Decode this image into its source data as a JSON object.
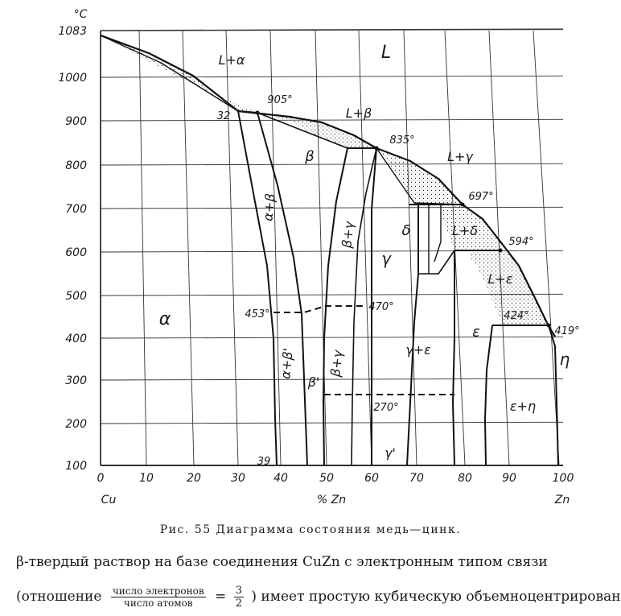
{
  "diagram": {
    "y_unit": "°C",
    "x_unit": "% Zn",
    "x_left": "Cu",
    "x_right": "Zn",
    "y_ticks": [
      "100",
      "200",
      "300",
      "400",
      "500",
      "600",
      "700",
      "800",
      "900",
      "1000",
      "1083"
    ],
    "x_ticks": [
      "0",
      "10",
      "20",
      "30",
      "40",
      "50",
      "60",
      "70",
      "80",
      "90",
      "100"
    ],
    "phase_labels": [
      "L",
      "L+α",
      "L+β",
      "L+γ",
      "L+δ",
      "L+ε",
      "α",
      "β",
      "γ",
      "δ",
      "ε",
      "η",
      "α+β",
      "β+γ",
      "α+β'",
      "β+γ",
      "β'",
      "γ+ε",
      "γ'",
      "ε+η"
    ],
    "temp_labels": [
      "905°",
      "32",
      "835°",
      "697°",
      "594°",
      "424°",
      "419°",
      "453°",
      "470°",
      "270°",
      "39"
    ]
  },
  "caption": "Рис. 55 Диаграмма состояния медь—цинк.",
  "body": {
    "line1": "β-твердый раствор на базе соединения CuZn с электронным типом связи",
    "line2_start": "(отношение",
    "frac_num": "число электронов",
    "frac_den": "число атомов",
    "equals": "=",
    "ratio_num": "3",
    "ratio_den": "2",
    "line2_end": ") имеет простую кубическую объемноцентрированную"
  }
}
